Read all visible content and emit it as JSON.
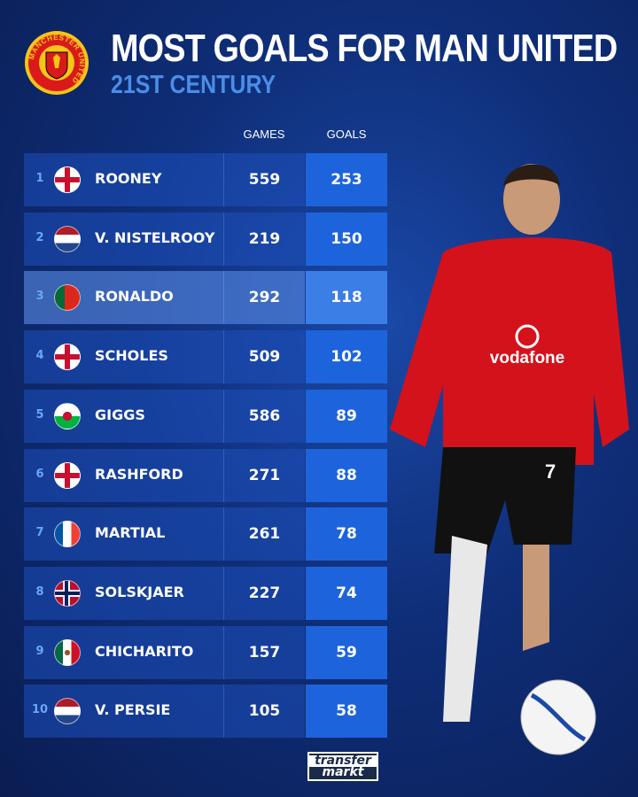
{
  "header": {
    "title": "MOST GOALS FOR MAN UNITED",
    "subtitle": "21ST CENTURY",
    "crest_text": "MANCHESTER UNITED"
  },
  "chart_data": {
    "type": "table",
    "title": "MOST GOALS FOR MAN UNITED",
    "subtitle": "21ST CENTURY",
    "columns": [
      "GAMES",
      "GOALS"
    ],
    "rows": [
      {
        "rank": "1",
        "flag": "england",
        "name": "ROONEY",
        "games": "559",
        "goals": "253"
      },
      {
        "rank": "2",
        "flag": "netherlands",
        "name": "V. NISTELROOY",
        "games": "219",
        "goals": "150"
      },
      {
        "rank": "3",
        "flag": "portugal",
        "name": "RONALDO",
        "games": "292",
        "goals": "118",
        "highlighted": true
      },
      {
        "rank": "4",
        "flag": "england",
        "name": "SCHOLES",
        "games": "509",
        "goals": "102"
      },
      {
        "rank": "5",
        "flag": "wales",
        "name": "GIGGS",
        "games": "586",
        "goals": "89"
      },
      {
        "rank": "6",
        "flag": "england",
        "name": "RASHFORD",
        "games": "271",
        "goals": "88"
      },
      {
        "rank": "7",
        "flag": "france",
        "name": "MARTIAL",
        "games": "261",
        "goals": "78"
      },
      {
        "rank": "8",
        "flag": "norway",
        "name": "SOLSKJAER",
        "games": "227",
        "goals": "74"
      },
      {
        "rank": "9",
        "flag": "mexico",
        "name": "CHICHARITO",
        "games": "157",
        "goals": "59"
      },
      {
        "rank": "10",
        "flag": "netherlands",
        "name": "V. PERSIE",
        "games": "105",
        "goals": "58"
      }
    ]
  },
  "player": {
    "shirt_sponsor": "vodafone",
    "shirt_number": "7"
  },
  "footer": {
    "brand_line1": "transfer",
    "brand_line2": "markt"
  },
  "colors": {
    "background": "#0f2e78",
    "goals_column": "#1d64dc",
    "subtitle": "#4a8ee8",
    "shirt": "#d4121c"
  }
}
